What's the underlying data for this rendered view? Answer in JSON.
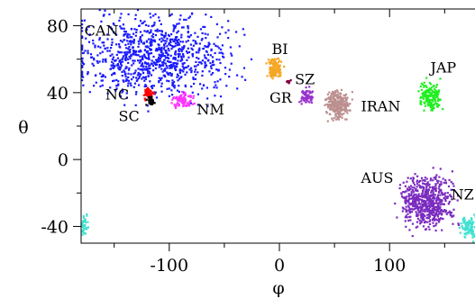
{
  "chart_data": {
    "type": "scatter",
    "title": "",
    "xlabel": "φ",
    "ylabel": "θ",
    "xlim": [
      -180,
      180
    ],
    "ylim": [
      -50,
      90
    ],
    "xticks": [
      -100,
      0,
      100
    ],
    "xtick_labels": [
      "-100",
      "0",
      "100"
    ],
    "yticks": [
      -40,
      0,
      40,
      80
    ],
    "ytick_labels": [
      "-40",
      "0",
      "40",
      "80"
    ],
    "grid": false,
    "legend": "none",
    "series": [
      {
        "name": "CAN",
        "color": "#1a1aff",
        "x_range": [
          -175,
          -52
        ],
        "y_range": [
          40,
          83
        ],
        "count": 950
      },
      {
        "name": "NC",
        "color": "#ff0000",
        "x_range": [
          -123,
          -115
        ],
        "y_range": [
          36,
          42
        ],
        "count": 45
      },
      {
        "name": "SC",
        "color": "#000000",
        "x_range": [
          -120,
          -113
        ],
        "y_range": [
          33,
          37
        ],
        "count": 35
      },
      {
        "name": "NM",
        "color": "#ff33ff",
        "x_range": [
          -96,
          -80
        ],
        "y_range": [
          32,
          40
        ],
        "count": 90
      },
      {
        "name": "BI",
        "color": "#f5a623",
        "x_range": [
          -10,
          2
        ],
        "y_range": [
          49,
          61
        ],
        "count": 110
      },
      {
        "name": "SZ",
        "color": "#800040",
        "x_range": [
          6,
          10
        ],
        "y_range": [
          45.5,
          47.5
        ],
        "count": 14
      },
      {
        "name": "GR",
        "color": "#9933cc",
        "x_range": [
          19,
          29
        ],
        "y_range": [
          34,
          42
        ],
        "count": 70
      },
      {
        "name": "IRAN",
        "color": "#bc8f8f",
        "x_range": [
          44,
          63
        ],
        "y_range": [
          25,
          40
        ],
        "count": 260
      },
      {
        "name": "JAP",
        "color": "#22ee22",
        "x_range": [
          128,
          146
        ],
        "y_range": [
          30,
          46
        ],
        "count": 160
      },
      {
        "name": "AUS",
        "color": "#7b2cbf",
        "x_range": [
          113,
          154
        ],
        "y_range": [
          -39,
          -11
        ],
        "count": 620
      },
      {
        "name": "NZ",
        "color": "#40e0d0",
        "x_range": [
          166,
          180
        ],
        "y_range": [
          -47,
          -34
        ],
        "count": 90
      },
      {
        "name": "",
        "color": "#40e0d0",
        "x_range": [
          -180,
          -174
        ],
        "y_range": [
          -46,
          -33
        ],
        "count": 40
      }
    ],
    "annotations": [
      {
        "text": "CAN",
        "x": -177,
        "y": 74
      },
      {
        "text": "BI",
        "x": -7,
        "y": 63
      },
      {
        "text": "JAP",
        "x": 137,
        "y": 52
      },
      {
        "text": "NC",
        "x": -158,
        "y": 36
      },
      {
        "text": "SC",
        "x": -146,
        "y": 23
      },
      {
        "text": "NM",
        "x": -75,
        "y": 27
      },
      {
        "text": "SZ",
        "x": 14,
        "y": 45
      },
      {
        "text": "GR",
        "x": -9,
        "y": 34
      },
      {
        "text": "IRAN",
        "x": 74,
        "y": 29
      },
      {
        "text": "AUS",
        "x": 74,
        "y": -14
      },
      {
        "text": "NZ",
        "x": 156,
        "y": -24
      }
    ]
  }
}
